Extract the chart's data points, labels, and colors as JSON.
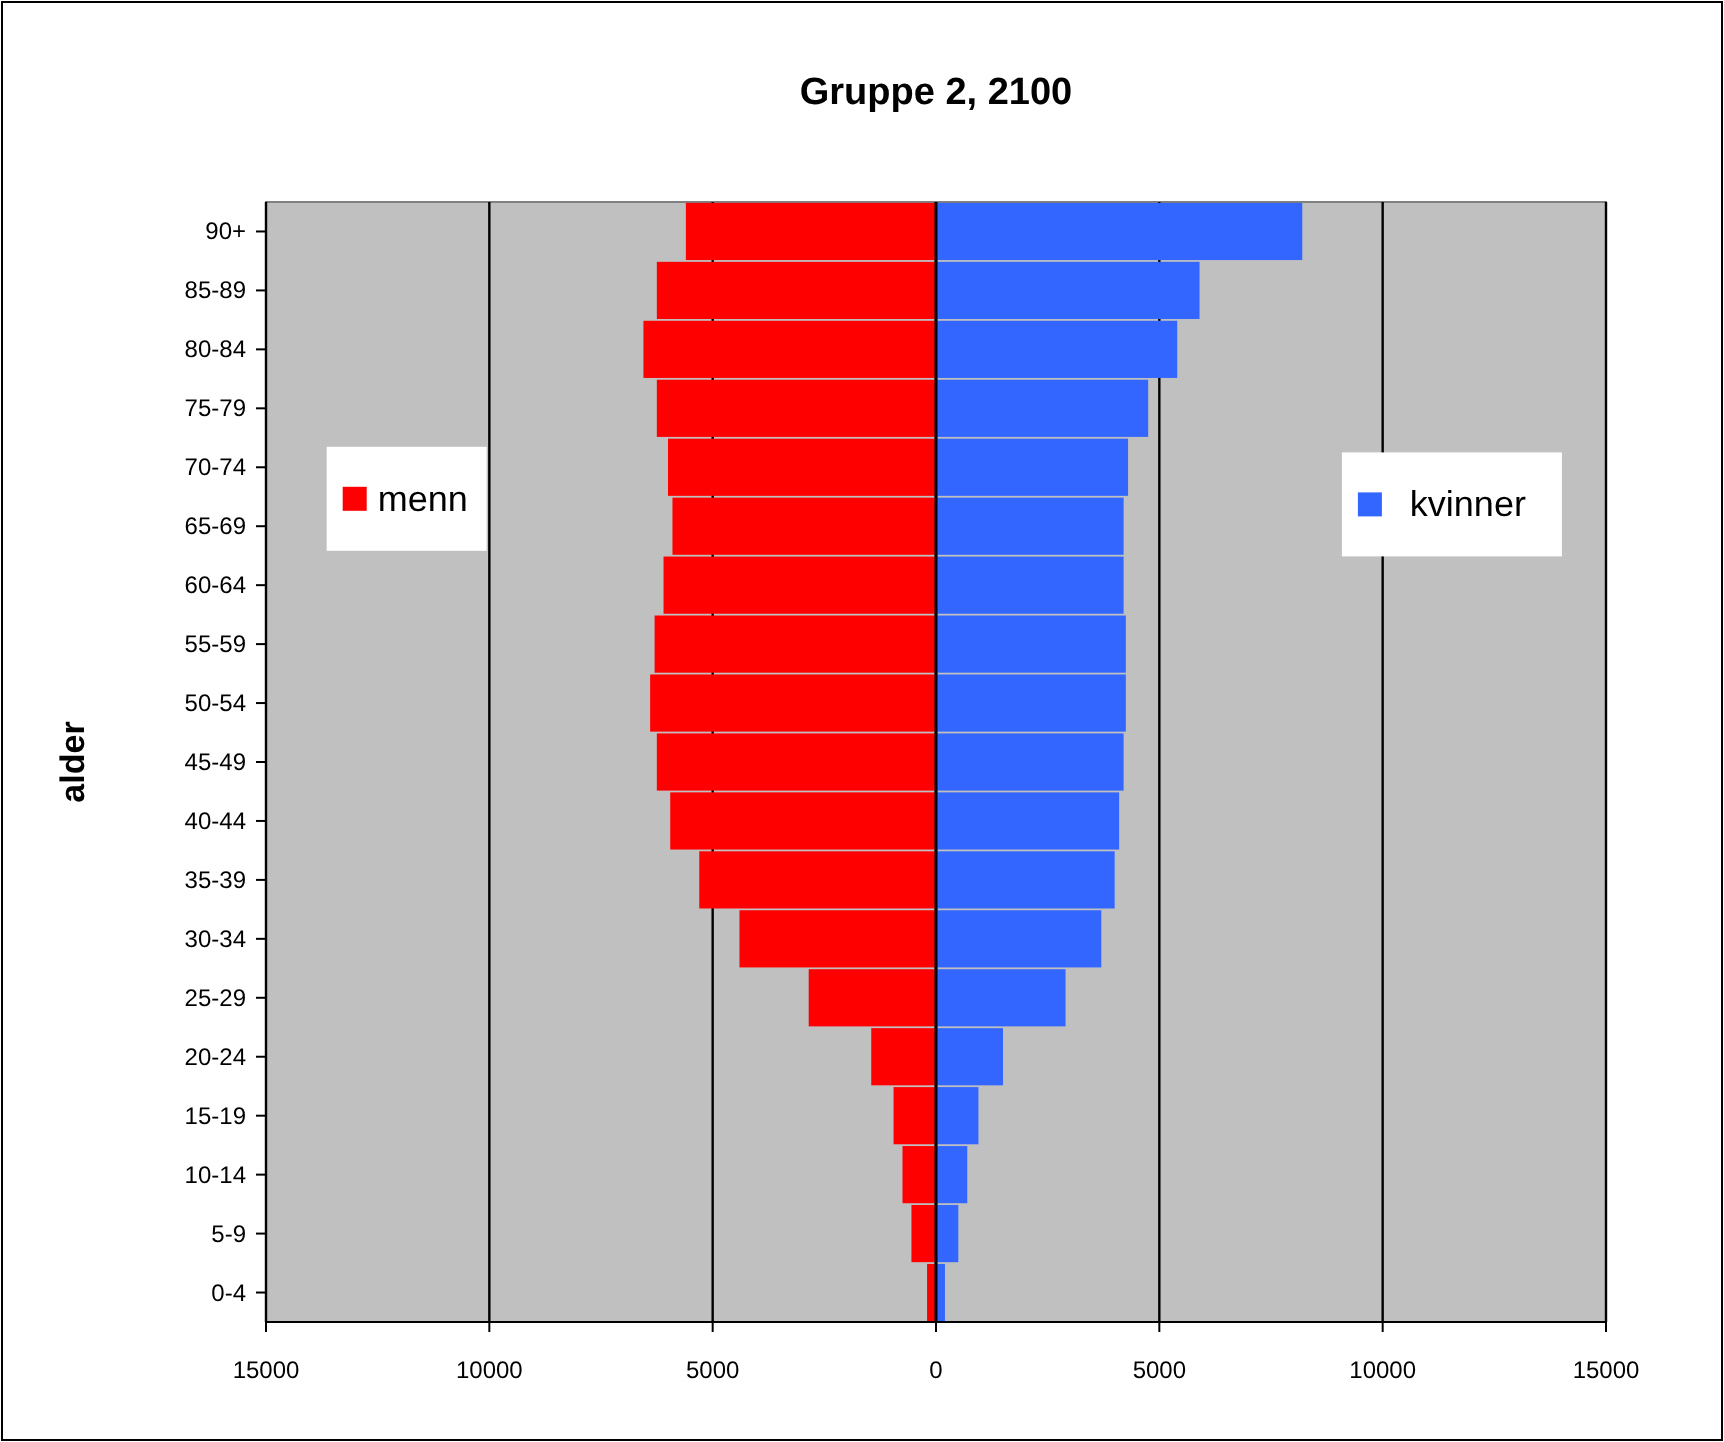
{
  "chart_data": {
    "type": "bar",
    "title": "Gruppe 2, 2100",
    "ylabel": "alder",
    "orientation": "horizontal",
    "stacked": true,
    "legend": "top",
    "grid": "x",
    "categories": [
      "90+",
      "85-89",
      "80-84",
      "75-79",
      "70-74",
      "65-69",
      "60-64",
      "55-59",
      "50-54",
      "45-49",
      "40-44",
      "35-39",
      "30-34",
      "25-29",
      "20-24",
      "15-19",
      "10-14",
      "5-9",
      "0-4"
    ],
    "series": [
      {
        "name": "menn",
        "color": "#ff0000",
        "values": [
          -5600,
          -6250,
          -6550,
          -6250,
          -6000,
          -5900,
          -6100,
          -6300,
          -6400,
          -6250,
          -5950,
          -5300,
          -4400,
          -2850,
          -1450,
          -950,
          -750,
          -550,
          -200
        ]
      },
      {
        "name": "kvinner",
        "color": "#3366ff",
        "values": [
          8200,
          5900,
          5400,
          4750,
          4300,
          4200,
          4200,
          4250,
          4250,
          4200,
          4100,
          4000,
          3700,
          2900,
          1500,
          950,
          700,
          500,
          200
        ]
      }
    ],
    "xlim": [
      -15000,
      15000
    ],
    "xticks": [
      {
        "value": -15000,
        "label": "15000"
      },
      {
        "value": -10000,
        "label": "10000"
      },
      {
        "value": -5000,
        "label": "5000"
      },
      0,
      5000,
      10000,
      15000
    ]
  }
}
